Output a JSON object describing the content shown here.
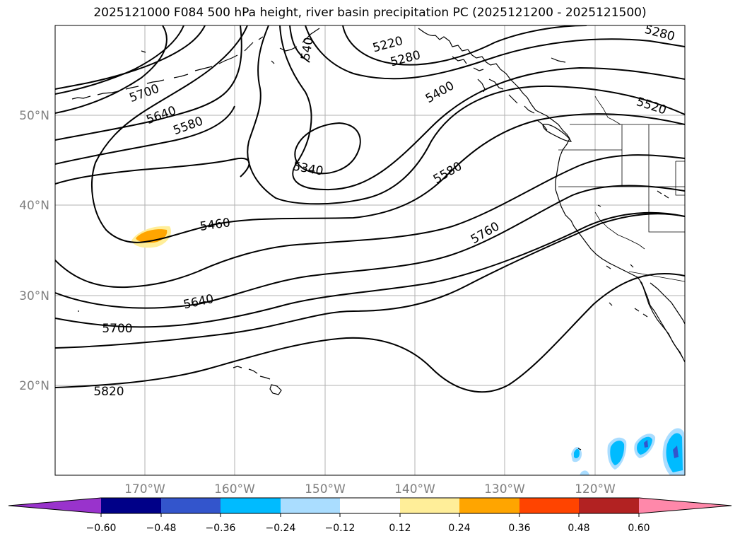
{
  "title": "2025121000 F084 500 hPa height, river basin precipitation PC (2025121200 - 2025121500)",
  "map": {
    "lat_labels": [
      "50°N",
      "40°N",
      "30°N",
      "20°N"
    ],
    "lon_labels": [
      "170°W",
      "160°W",
      "150°W",
      "140°W",
      "130°W",
      "120°W"
    ],
    "contour_labels": [
      {
        "text": "5220",
        "angle": -15
      },
      {
        "text": "5280",
        "angle": -15
      },
      {
        "text": "5280",
        "angle": 15
      },
      {
        "text": "5400",
        "angle": -30
      },
      {
        "text": "5520",
        "angle": 18
      },
      {
        "text": "5700",
        "angle": -20
      },
      {
        "text": "5640",
        "angle": -20
      },
      {
        "text": "5580",
        "angle": -20
      },
      {
        "text": "5340",
        "angle": 10
      },
      {
        "text": "5580",
        "angle": -30
      },
      {
        "text": "5460",
        "angle": -8
      },
      {
        "text": "5760",
        "angle": -30
      },
      {
        "text": "5640",
        "angle": -12
      },
      {
        "text": "5700",
        "angle": 0
      },
      {
        "text": "5820",
        "angle": 0
      },
      {
        "text": "540",
        "angle": -80
      }
    ]
  },
  "colorbar": {
    "colors": [
      "#9933cc",
      "#000088",
      "#3355cc",
      "#00bbff",
      "#aaddff",
      "#ffffff",
      "#ffee99",
      "#ffa500",
      "#ff4400",
      "#b22222",
      "#ff88aa"
    ],
    "ticks": [
      "−0.60",
      "−0.48",
      "−0.36",
      "−0.24",
      "−0.12",
      "0.12",
      "0.24",
      "0.36",
      "0.48",
      "0.60"
    ]
  }
}
